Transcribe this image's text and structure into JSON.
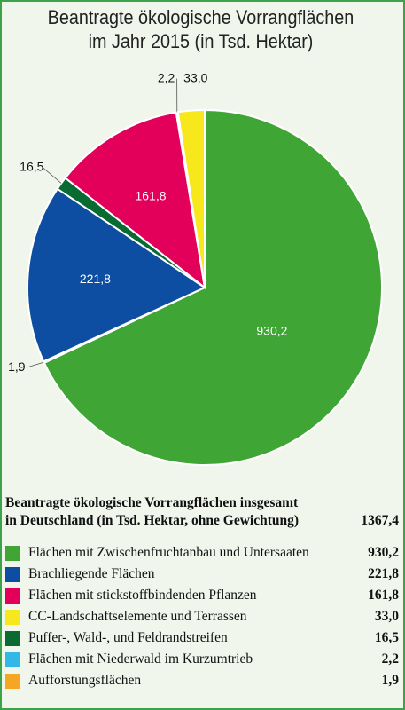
{
  "title": {
    "line1": "Beantragte ökologische Vorrangflächen",
    "line2": "im Jahr 2015 (in Tsd. Hektar)"
  },
  "summary": {
    "line1": "Beantragte ökologische Vorrangflächen insgesamt",
    "line2": "in Deutschland (in Tsd. Hektar, ohne Gewichtung)",
    "total": "1367,4"
  },
  "chart_data": {
    "type": "pie",
    "title": "Beantragte ökologische Vorrangflächen im Jahr 2015 (in Tsd. Hektar)",
    "total": 1367.4,
    "slices": [
      {
        "name": "Flächen mit Zwischenfruchtanbau und Untersaaten",
        "value": 930.2,
        "label": "930,2",
        "color": "#3fa535"
      },
      {
        "name": "Aufforstungsflächen",
        "value": 1.9,
        "label": "1,9",
        "color": "#f5a623"
      },
      {
        "name": "Brachliegende Flächen",
        "value": 221.8,
        "label": "221,8",
        "color": "#0d4ea2"
      },
      {
        "name": "Puffer-, Wald-, und Feldrandstreifen",
        "value": 16.5,
        "label": "16,5",
        "color": "#0a6b32"
      },
      {
        "name": "Flächen mit stickstoffbindenden Pflanzen",
        "value": 161.8,
        "label": "161,8",
        "color": "#e2005a"
      },
      {
        "name": "Flächen mit Niederwald im Kurzumtrieb",
        "value": 2.2,
        "label": "2,2",
        "color": "#33b7e6"
      },
      {
        "name": "CC-Landschaftselemente und Terrassen",
        "value": 33.0,
        "label": "33,0",
        "color": "#f6e81d"
      }
    ],
    "legend_order": [
      0,
      2,
      4,
      6,
      3,
      5,
      1
    ]
  }
}
